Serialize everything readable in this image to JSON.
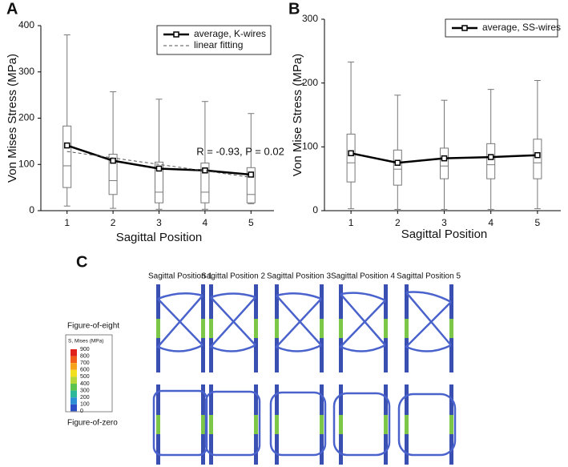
{
  "chart_data": [
    {
      "type": "box",
      "panel_label": "A",
      "ylabel": "Von Mises Stress (MPa)",
      "xlabel": "Sagittal Position",
      "categories": [
        "1",
        "2",
        "3",
        "4",
        "5"
      ],
      "ylim": [
        0,
        400
      ],
      "yticks": [
        0,
        100,
        200,
        300,
        400
      ],
      "whisker_low": [
        10,
        5,
        3,
        3,
        15
      ],
      "q1": [
        50,
        35,
        17,
        17,
        17
      ],
      "median": [
        97,
        65,
        40,
        40,
        35
      ],
      "q3": [
        183,
        122,
        105,
        103,
        93
      ],
      "whisker_high": [
        380,
        257,
        241,
        236,
        210
      ],
      "series": [
        {
          "name": "average, K-wires",
          "color": "#000000",
          "values": [
            141,
            108,
            91,
            87,
            78
          ]
        },
        {
          "name": "linear fitting",
          "color": "#555555",
          "line_style": "dashed",
          "values": [
            128,
            114,
            100,
            86,
            72
          ]
        }
      ],
      "annotation": "R = -0.93, P = 0.02",
      "legend_position": "upper right"
    },
    {
      "type": "box",
      "panel_label": "B",
      "ylabel": "Von Mise Stress (MPa)",
      "xlabel": "Sagittal Position",
      "categories": [
        "1",
        "2",
        "3",
        "4",
        "5"
      ],
      "ylim": [
        0,
        300
      ],
      "yticks": [
        0,
        100,
        200,
        300
      ],
      "whisker_low": [
        3,
        2,
        2,
        2,
        3
      ],
      "q1": [
        45,
        40,
        50,
        50,
        50
      ],
      "median": [
        75,
        65,
        70,
        72,
        75
      ],
      "q3": [
        120,
        95,
        98,
        105,
        112
      ],
      "whisker_high": [
        233,
        181,
        173,
        190,
        204
      ],
      "series": [
        {
          "name": "average, SS-wires",
          "color": "#000000",
          "values": [
            90,
            75,
            82,
            84,
            87
          ]
        }
      ],
      "legend_position": "upper right"
    }
  ],
  "panel_c": {
    "panel_label": "C",
    "columns": [
      "Sagittal Position 1",
      "Sagittal Position 2",
      "Sagittal Position 3",
      "Sagittal Position 4",
      "Sagittal Position 5"
    ],
    "rows": [
      "Figure-of-eight",
      "Figure-of-zero"
    ],
    "legend": {
      "title": "S, Mises (MPa)",
      "labels": [
        900,
        800,
        700,
        600,
        500,
        400,
        300,
        200,
        100,
        0
      ],
      "colors": [
        "#e0201b",
        "#f25c19",
        "#f7a21b",
        "#f2e01f",
        "#b6d83a",
        "#5cc24e",
        "#2eb89a",
        "#2b8fd6",
        "#2b4fc4"
      ]
    }
  }
}
